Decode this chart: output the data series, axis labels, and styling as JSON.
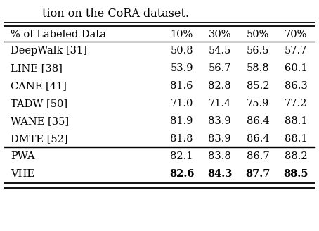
{
  "title_text": "tion on the CᴏRA dataset.",
  "header": [
    "% of Labeled Data",
    "10%",
    "30%",
    "50%",
    "70%"
  ],
  "rows": [
    [
      "DeepWalk [31]",
      "50.8",
      "54.5",
      "56.5",
      "57.7"
    ],
    [
      "LINE [38]",
      "53.9",
      "56.7",
      "58.8",
      "60.1"
    ],
    [
      "CANE [41]",
      "81.6",
      "82.8",
      "85.2",
      "86.3"
    ],
    [
      "TADW [50]",
      "71.0",
      "71.4",
      "75.9",
      "77.2"
    ],
    [
      "WANE [35]",
      "81.9",
      "83.9",
      "86.4",
      "88.1"
    ],
    [
      "DMTE [52]",
      "81.8",
      "83.9",
      "86.4",
      "88.1"
    ],
    [
      "PWA",
      "82.1",
      "83.8",
      "86.7",
      "88.2"
    ],
    [
      "VHE",
      "82.6",
      "84.3",
      "87.7",
      "88.5"
    ]
  ],
  "bold_last_row_data": true,
  "separator_after_row": 5,
  "bg_color": "#ffffff",
  "text_color": "#000000",
  "font_size": 10.5
}
